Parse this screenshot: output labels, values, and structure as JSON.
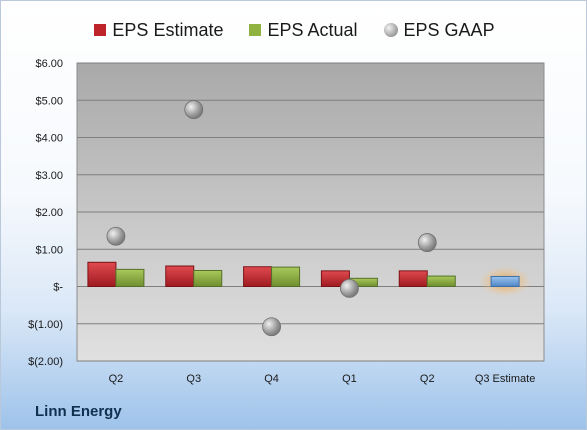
{
  "chart_data": {
    "type": "bar",
    "categories": [
      "Q2",
      "Q3",
      "Q4",
      "Q1",
      "Q2",
      "Q3 Estimate"
    ],
    "series": [
      {
        "name": "EPS Estimate",
        "values": [
          0.65,
          0.55,
          0.53,
          0.42,
          0.42,
          null
        ],
        "color": "#c0242b"
      },
      {
        "name": "EPS Actual",
        "values": [
          0.46,
          0.43,
          0.52,
          0.22,
          0.28,
          null
        ],
        "color": "#8fb241"
      },
      {
        "name": "EPS GAAP",
        "values": [
          1.35,
          4.75,
          -1.08,
          -0.05,
          1.18,
          null
        ],
        "color": "#a6a6a6"
      }
    ],
    "estimate_bar": {
      "category": "Q3 Estimate",
      "value": 0.27,
      "color": "#6fa3dc"
    },
    "ylim": [
      -2,
      6
    ],
    "yticks": [
      6,
      5,
      4,
      3,
      2,
      1,
      0,
      -1,
      -2
    ],
    "ytick_labels": [
      "$6.00",
      "$5.00",
      "$4.00",
      "$3.00",
      "$2.00",
      "$1.00",
      "$-",
      "$(1.00)",
      "$(2.00)"
    ],
    "legend_position": "top",
    "grid": true
  },
  "company": "Linn Energy"
}
